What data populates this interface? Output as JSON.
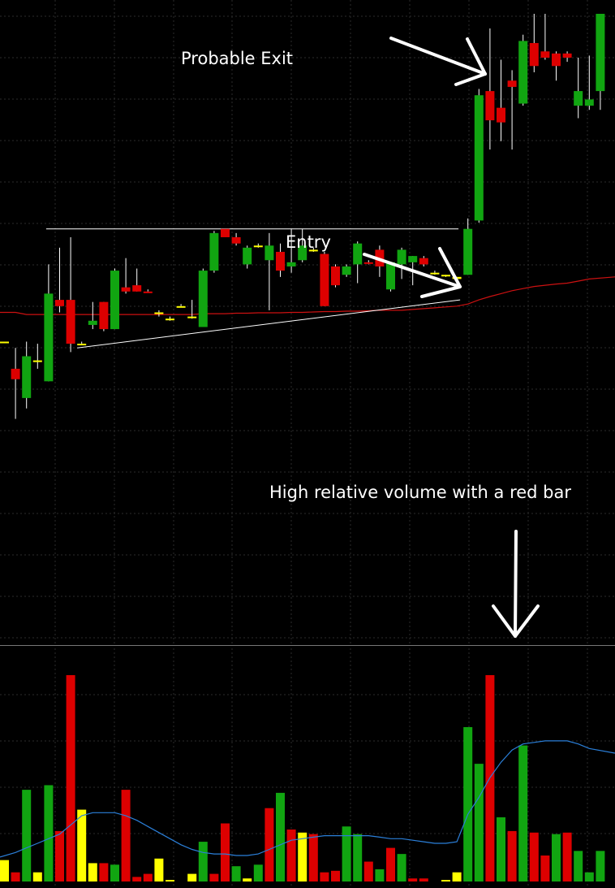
{
  "annotations": {
    "probable_exit": "Probable Exit",
    "entry": "Entry",
    "volume_note": "High relative volume with a red bar"
  },
  "colors": {
    "background": "#000000",
    "grid": "#2b2b2b",
    "up": "#11a511",
    "down": "#dd0000",
    "doji": "#ffff00",
    "wick": "#ffffff",
    "moving_average": "#cc1111",
    "volume_average": "#2b7fd9",
    "trendline": "#ffffff",
    "panel_divider": "#777777"
  },
  "chart_data": [
    {
      "type": "candlestick",
      "panel": "price",
      "grid": true,
      "candles": [
        {
          "o": 9.25,
          "h": 9.25,
          "l": 9.25,
          "c": 9.25,
          "color": "doji"
        },
        {
          "o": 8.6,
          "h": 9.1,
          "l": 7.4,
          "c": 8.35,
          "color": "down"
        },
        {
          "o": 7.9,
          "h": 9.25,
          "l": 7.65,
          "c": 8.9,
          "color": "up"
        },
        {
          "o": 8.8,
          "h": 9.2,
          "l": 8.6,
          "c": 8.8,
          "color": "doji"
        },
        {
          "o": 8.3,
          "h": 11.1,
          "l": 8.3,
          "c": 10.4,
          "color": "up"
        },
        {
          "o": 10.25,
          "h": 11.5,
          "l": 9.95,
          "c": 10.1,
          "color": "down"
        },
        {
          "o": 10.25,
          "h": 11.75,
          "l": 9.0,
          "c": 9.2,
          "color": "down"
        },
        {
          "o": 9.2,
          "h": 9.25,
          "l": 9.2,
          "c": 9.2,
          "color": "doji"
        },
        {
          "o": 9.65,
          "h": 10.2,
          "l": 9.55,
          "c": 9.75,
          "color": "up"
        },
        {
          "o": 10.2,
          "h": 10.2,
          "l": 9.5,
          "c": 9.55,
          "color": "down"
        },
        {
          "o": 9.55,
          "h": 11.0,
          "l": 9.55,
          "c": 10.95,
          "color": "up"
        },
        {
          "o": 10.55,
          "h": 11.25,
          "l": 10.4,
          "c": 10.45,
          "color": "down"
        },
        {
          "o": 10.6,
          "h": 11.0,
          "l": 10.45,
          "c": 10.45,
          "color": "down"
        },
        {
          "o": 10.45,
          "h": 10.5,
          "l": 10.45,
          "c": 10.45,
          "color": "down"
        },
        {
          "o": 9.95,
          "h": 10.0,
          "l": 9.85,
          "c": 9.95,
          "color": "doji"
        },
        {
          "o": 9.8,
          "h": 9.85,
          "l": 9.75,
          "c": 9.8,
          "color": "doji"
        },
        {
          "o": 10.1,
          "h": 10.15,
          "l": 10.1,
          "c": 10.1,
          "color": "doji"
        },
        {
          "o": 9.85,
          "h": 10.25,
          "l": 9.8,
          "c": 9.85,
          "color": "doji"
        },
        {
          "o": 9.6,
          "h": 11.0,
          "l": 9.6,
          "c": 10.95,
          "color": "up"
        },
        {
          "o": 10.95,
          "h": 11.9,
          "l": 10.9,
          "c": 11.85,
          "color": "up"
        },
        {
          "o": 11.95,
          "h": 11.95,
          "l": 11.75,
          "c": 11.75,
          "color": "down"
        },
        {
          "o": 11.75,
          "h": 11.85,
          "l": 11.55,
          "c": 11.6,
          "color": "down"
        },
        {
          "o": 11.1,
          "h": 11.55,
          "l": 11.0,
          "c": 11.5,
          "color": "up"
        },
        {
          "o": 11.55,
          "h": 11.6,
          "l": 11.5,
          "c": 11.55,
          "color": "doji"
        },
        {
          "o": 11.2,
          "h": 11.85,
          "l": 10.0,
          "c": 11.55,
          "color": "up"
        },
        {
          "o": 11.4,
          "h": 11.6,
          "l": 10.8,
          "c": 10.95,
          "color": "down"
        },
        {
          "o": 11.05,
          "h": 11.95,
          "l": 10.9,
          "c": 11.15,
          "color": "up"
        },
        {
          "o": 11.2,
          "h": 11.95,
          "l": 11.15,
          "c": 11.55,
          "color": "up"
        },
        {
          "o": 11.45,
          "h": 11.5,
          "l": 11.4,
          "c": 11.45,
          "color": "doji"
        },
        {
          "o": 11.35,
          "h": 11.4,
          "l": 10.1,
          "c": 10.1,
          "color": "down"
        },
        {
          "o": 11.05,
          "h": 11.1,
          "l": 10.55,
          "c": 10.6,
          "color": "down"
        },
        {
          "o": 10.85,
          "h": 11.1,
          "l": 10.8,
          "c": 11.05,
          "color": "up"
        },
        {
          "o": 11.1,
          "h": 11.65,
          "l": 10.65,
          "c": 11.6,
          "color": "up"
        },
        {
          "o": 11.15,
          "h": 11.2,
          "l": 11.1,
          "c": 11.15,
          "color": "down"
        },
        {
          "o": 11.45,
          "h": 11.55,
          "l": 10.8,
          "c": 11.05,
          "color": "down"
        },
        {
          "o": 10.5,
          "h": 11.15,
          "l": 10.45,
          "c": 11.15,
          "color": "up"
        },
        {
          "o": 11.1,
          "h": 11.5,
          "l": 10.75,
          "c": 11.45,
          "color": "up"
        },
        {
          "o": 11.3,
          "h": 11.3,
          "l": 10.6,
          "c": 11.15,
          "color": "up"
        },
        {
          "o": 11.25,
          "h": 11.3,
          "l": 11.05,
          "c": 11.1,
          "color": "down"
        },
        {
          "o": 10.9,
          "h": 10.95,
          "l": 10.85,
          "c": 10.9,
          "color": "doji"
        },
        {
          "o": 10.85,
          "h": 10.85,
          "l": 10.8,
          "c": 10.85,
          "color": "doji"
        },
        {
          "o": 10.8,
          "h": 10.8,
          "l": 10.75,
          "c": 10.75,
          "color": "doji"
        },
        {
          "o": 10.85,
          "h": 12.2,
          "l": 10.85,
          "c": 11.95,
          "color": "up"
        },
        {
          "o": 12.15,
          "h": 15.3,
          "l": 12.1,
          "c": 15.15,
          "color": "up"
        },
        {
          "o": 15.25,
          "h": 16.75,
          "l": 13.85,
          "c": 14.55,
          "color": "down"
        },
        {
          "o": 14.85,
          "h": 16.0,
          "l": 14.05,
          "c": 14.5,
          "color": "down"
        },
        {
          "o": 15.5,
          "h": 15.75,
          "l": 13.85,
          "c": 15.35,
          "color": "down"
        },
        {
          "o": 14.95,
          "h": 16.6,
          "l": 14.9,
          "c": 16.45,
          "color": "up"
        },
        {
          "o": 16.4,
          "h": 17.1,
          "l": 15.7,
          "c": 15.85,
          "color": "down"
        },
        {
          "o": 16.2,
          "h": 17.1,
          "l": 16.0,
          "c": 16.05,
          "color": "down"
        },
        {
          "o": 16.15,
          "h": 16.2,
          "l": 15.5,
          "c": 15.85,
          "color": "down"
        },
        {
          "o": 16.15,
          "h": 16.2,
          "l": 15.95,
          "c": 16.05,
          "color": "down"
        },
        {
          "o": 14.9,
          "h": 16.05,
          "l": 14.6,
          "c": 15.25,
          "color": "up"
        },
        {
          "o": 15.05,
          "h": 16.1,
          "l": 14.8,
          "c": 14.9,
          "color": "up"
        },
        {
          "o": 15.25,
          "h": 17.1,
          "l": 14.8,
          "c": 17.1,
          "color": "up"
        }
      ],
      "moving_average": [
        9.95,
        9.95,
        9.9,
        9.9,
        9.9,
        9.9,
        9.9,
        9.9,
        9.9,
        9.9,
        9.9,
        9.9,
        9.9,
        9.9,
        9.9,
        9.9,
        9.9,
        9.9,
        9.92,
        9.92,
        9.92,
        9.93,
        9.93,
        9.94,
        9.94,
        9.94,
        9.95,
        9.95,
        9.96,
        9.97,
        9.97,
        9.98,
        9.98,
        9.99,
        10.0,
        10.0,
        10.0,
        10.02,
        10.04,
        10.06,
        10.08,
        10.1,
        10.15,
        10.25,
        10.33,
        10.4,
        10.47,
        10.52,
        10.57,
        10.6,
        10.63,
        10.65,
        10.7,
        10.75,
        10.8
      ],
      "resistance_level": 11.95,
      "support_trendline": [
        {
          "x": 6,
          "y": 9.1
        },
        {
          "x": 41,
          "y": 10.25
        }
      ]
    },
    {
      "type": "bar",
      "panel": "volume",
      "grid": true,
      "bars": [
        {
          "v": 14,
          "color": "doji"
        },
        {
          "v": 6,
          "color": "down"
        },
        {
          "v": 60,
          "color": "up"
        },
        {
          "v": 6,
          "color": "doji"
        },
        {
          "v": 63,
          "color": "up"
        },
        {
          "v": 33,
          "color": "down"
        },
        {
          "v": 135,
          "color": "down"
        },
        {
          "v": 47,
          "color": "doji"
        },
        {
          "v": 12,
          "color": "doji"
        },
        {
          "v": 12,
          "color": "down"
        },
        {
          "v": 11,
          "color": "up"
        },
        {
          "v": 60,
          "color": "down"
        },
        {
          "v": 3,
          "color": "down"
        },
        {
          "v": 5,
          "color": "down"
        },
        {
          "v": 15,
          "color": "doji"
        },
        {
          "v": 1,
          "color": "doji"
        },
        {
          "v": 0,
          "color": "doji"
        },
        {
          "v": 5,
          "color": "doji"
        },
        {
          "v": 26,
          "color": "up"
        },
        {
          "v": 5,
          "color": "down"
        },
        {
          "v": 38,
          "color": "down"
        },
        {
          "v": 10,
          "color": "up"
        },
        {
          "v": 2,
          "color": "doji"
        },
        {
          "v": 11,
          "color": "up"
        },
        {
          "v": 48,
          "color": "down"
        },
        {
          "v": 58,
          "color": "up"
        },
        {
          "v": 34,
          "color": "down"
        },
        {
          "v": 32,
          "color": "doji"
        },
        {
          "v": 31,
          "color": "down"
        },
        {
          "v": 6,
          "color": "down"
        },
        {
          "v": 7,
          "color": "down"
        },
        {
          "v": 36,
          "color": "up"
        },
        {
          "v": 31,
          "color": "up"
        },
        {
          "v": 13,
          "color": "down"
        },
        {
          "v": 8,
          "color": "up"
        },
        {
          "v": 22,
          "color": "down"
        },
        {
          "v": 18,
          "color": "up"
        },
        {
          "v": 2,
          "color": "down"
        },
        {
          "v": 2,
          "color": "down"
        },
        {
          "v": 0,
          "color": "doji"
        },
        {
          "v": 1,
          "color": "doji"
        },
        {
          "v": 6,
          "color": "doji"
        },
        {
          "v": 101,
          "color": "up"
        },
        {
          "v": 77,
          "color": "up"
        },
        {
          "v": 135,
          "color": "down"
        },
        {
          "v": 42,
          "color": "up"
        },
        {
          "v": 33,
          "color": "down"
        },
        {
          "v": 89,
          "color": "up"
        },
        {
          "v": 32,
          "color": "down"
        },
        {
          "v": 17,
          "color": "down"
        },
        {
          "v": 31,
          "color": "up"
        },
        {
          "v": 32,
          "color": "down"
        },
        {
          "v": 20,
          "color": "up"
        },
        {
          "v": 6,
          "color": "up"
        },
        {
          "v": 20,
          "color": "up"
        }
      ],
      "average": [
        16,
        19,
        22,
        25,
        28,
        31,
        37,
        43,
        45,
        45,
        45,
        43,
        40,
        36,
        32,
        28,
        24,
        21,
        19,
        18,
        18,
        17,
        17,
        18,
        21,
        24,
        27,
        28,
        29,
        30,
        30,
        30,
        30,
        30,
        29,
        28,
        28,
        27,
        26,
        25,
        25,
        26,
        44,
        55,
        68,
        78,
        86,
        90,
        91,
        92,
        92,
        92,
        90,
        87,
        84
      ]
    }
  ]
}
